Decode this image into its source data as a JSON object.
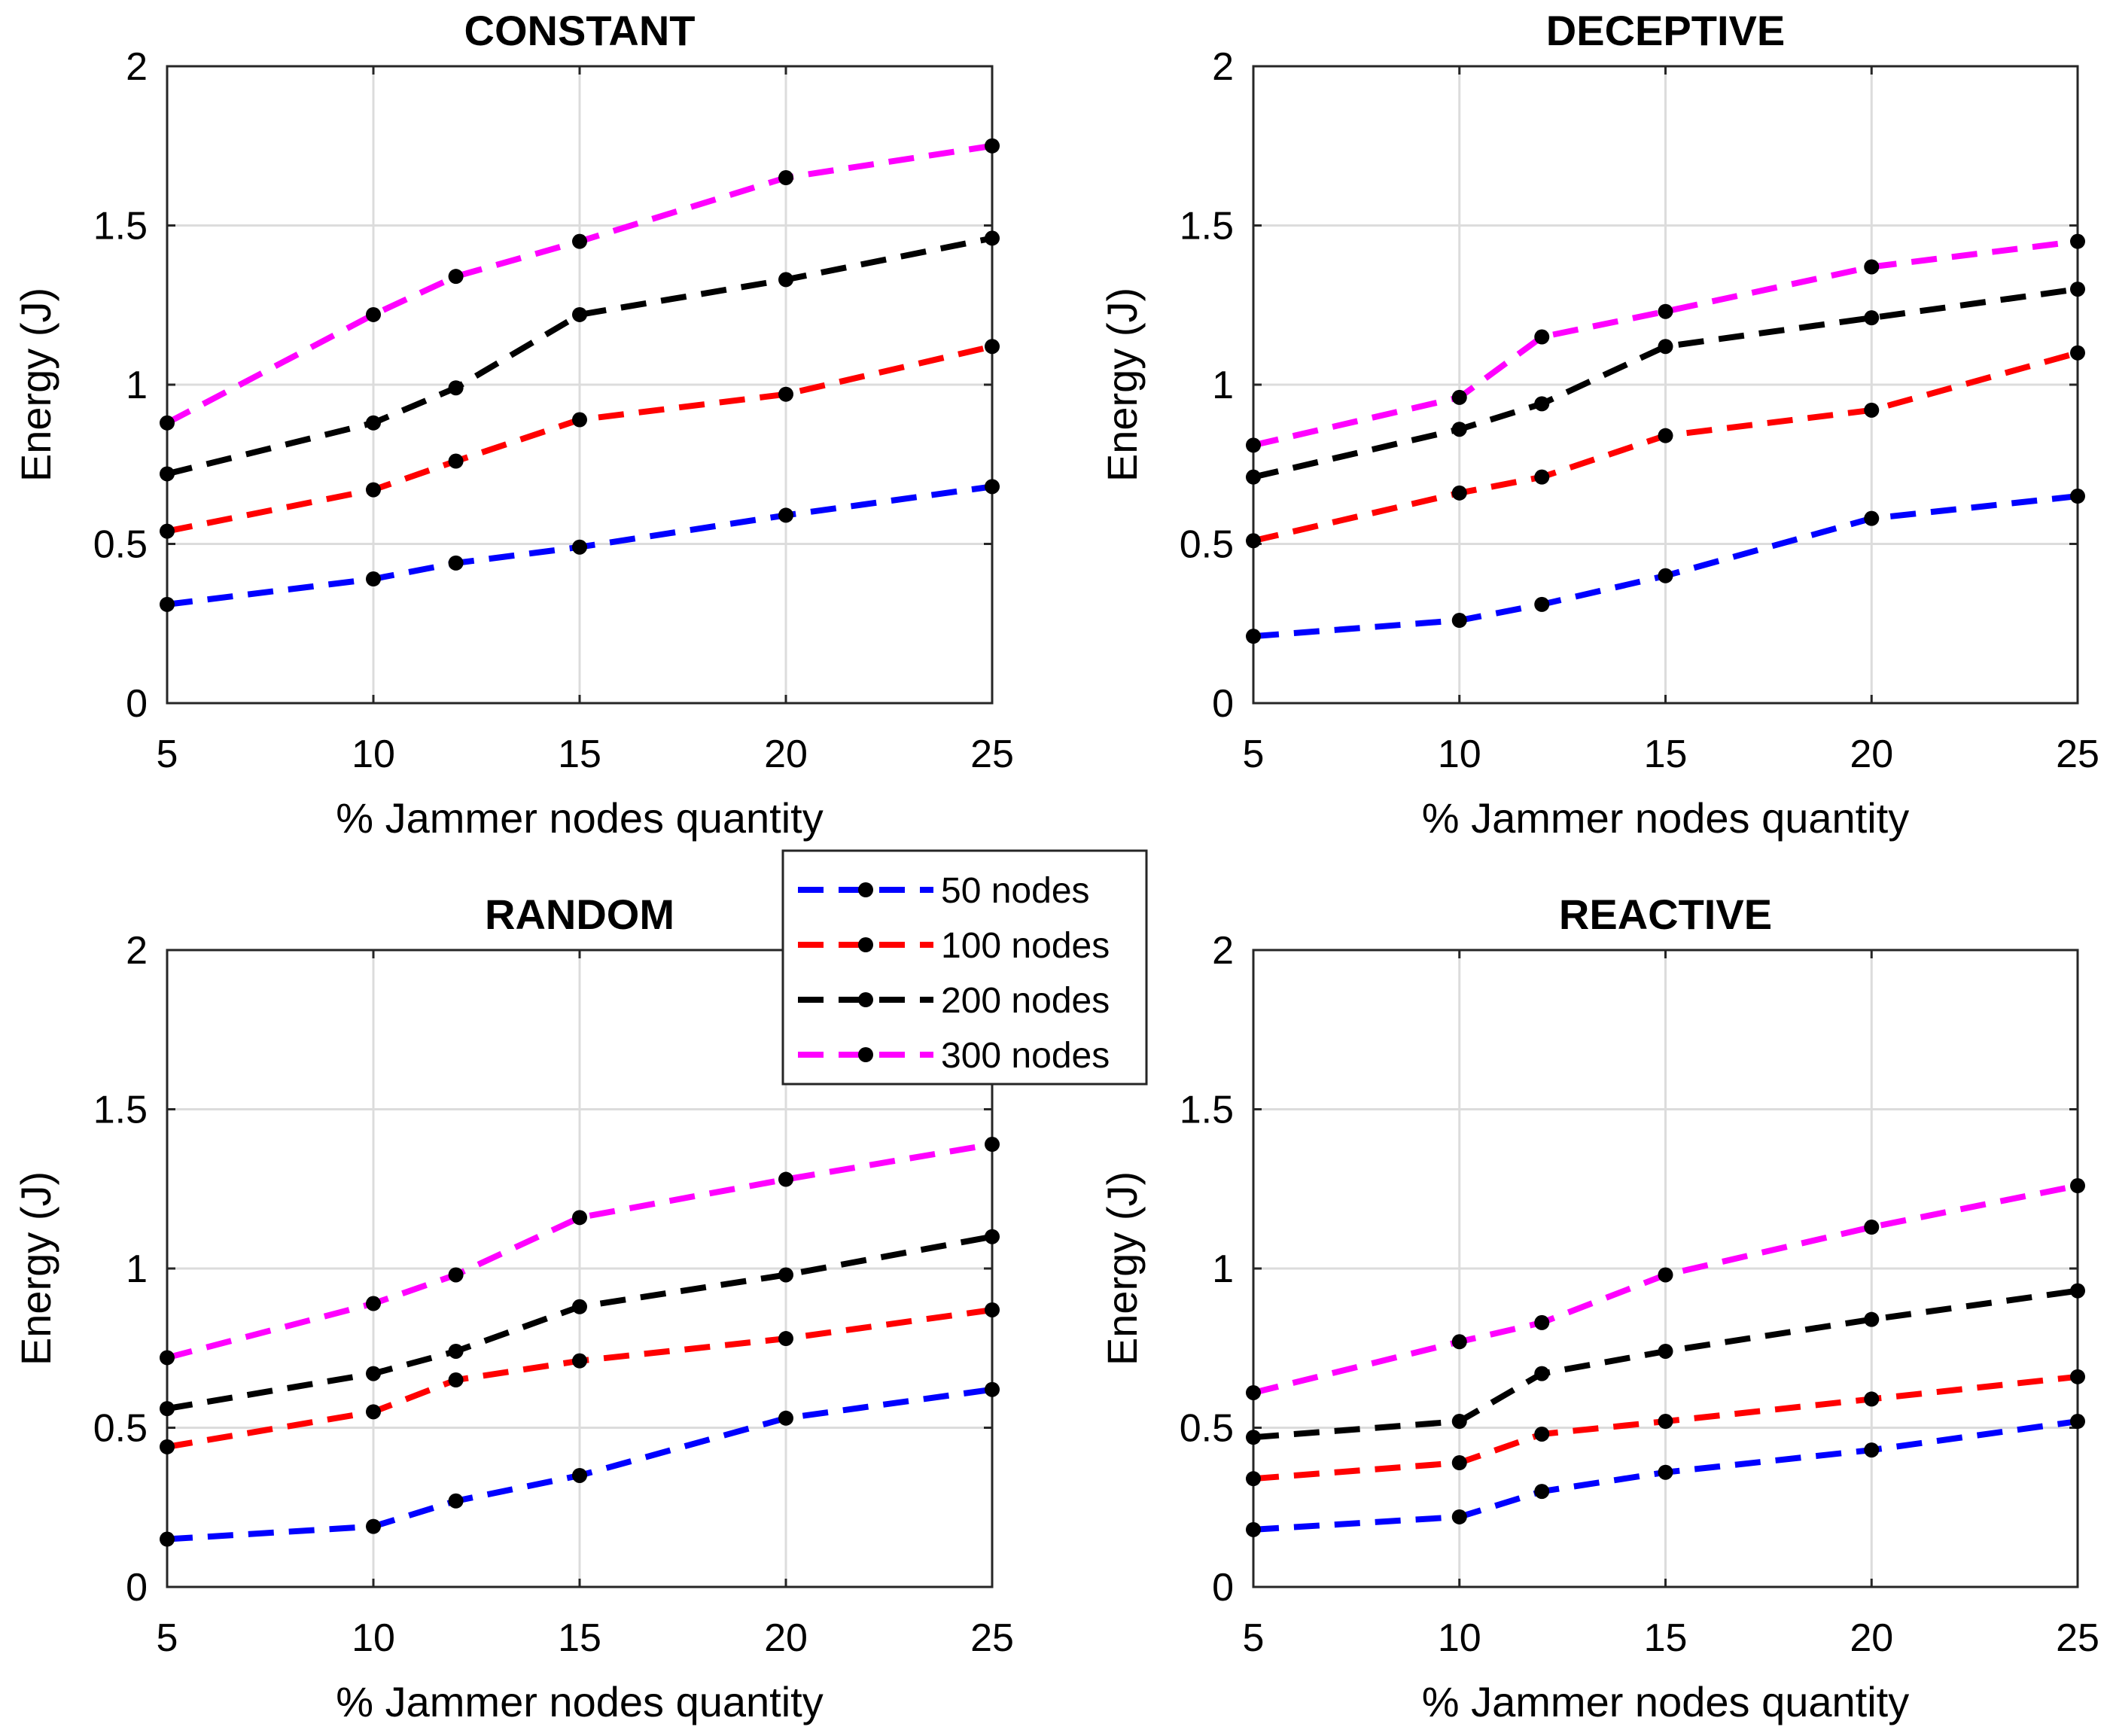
{
  "chart_data": [
    {
      "type": "line",
      "title": "CONSTANT",
      "xlabel": "% Jammer nodes quantity",
      "ylabel": "Energy (J)",
      "x": [
        5,
        10,
        12,
        15,
        20,
        25
      ],
      "xticks": [
        "5",
        "10",
        "15",
        "20",
        "25"
      ],
      "yticks": [
        "0",
        "0.5",
        "1",
        "1.5",
        "2"
      ],
      "xlim": [
        5,
        25
      ],
      "ylim": [
        0,
        2
      ],
      "grid": true,
      "series": [
        {
          "name": "50 nodes",
          "color": "#0000ff",
          "values": [
            0.31,
            0.39,
            0.44,
            0.49,
            0.59,
            0.68
          ]
        },
        {
          "name": "100 nodes",
          "color": "#ff0000",
          "values": [
            0.54,
            0.67,
            0.76,
            0.89,
            0.97,
            1.12
          ]
        },
        {
          "name": "200 nodes",
          "color": "#000000",
          "values": [
            0.72,
            0.88,
            0.99,
            1.22,
            1.33,
            1.46
          ]
        },
        {
          "name": "300 nodes",
          "color": "#ff00ff",
          "values": [
            0.88,
            1.22,
            1.34,
            1.45,
            1.65,
            1.75
          ]
        }
      ]
    },
    {
      "type": "line",
      "title": "DECEPTIVE",
      "xlabel": "% Jammer nodes quantity",
      "ylabel": "Energy (J)",
      "x": [
        5,
        10,
        12,
        15,
        20,
        25
      ],
      "xticks": [
        "5",
        "10",
        "15",
        "20",
        "25"
      ],
      "yticks": [
        "0",
        "0.5",
        "1",
        "1.5",
        "2"
      ],
      "xlim": [
        5,
        25
      ],
      "ylim": [
        0,
        2
      ],
      "grid": true,
      "series": [
        {
          "name": "50 nodes",
          "color": "#0000ff",
          "values": [
            0.21,
            0.26,
            0.31,
            0.4,
            0.58,
            0.65
          ]
        },
        {
          "name": "100 nodes",
          "color": "#ff0000",
          "values": [
            0.51,
            0.66,
            0.71,
            0.84,
            0.92,
            1.1
          ]
        },
        {
          "name": "200 nodes",
          "color": "#000000",
          "values": [
            0.71,
            0.86,
            0.94,
            1.12,
            1.21,
            1.3
          ]
        },
        {
          "name": "300 nodes",
          "color": "#ff00ff",
          "values": [
            0.81,
            0.96,
            1.15,
            1.23,
            1.37,
            1.45
          ]
        }
      ]
    },
    {
      "type": "line",
      "title": "RANDOM",
      "xlabel": "% Jammer nodes quantity",
      "ylabel": "Energy (J)",
      "x": [
        5,
        10,
        12,
        15,
        20,
        25
      ],
      "xticks": [
        "5",
        "10",
        "15",
        "20",
        "25"
      ],
      "yticks": [
        "0",
        "0.5",
        "1",
        "1.5",
        "2"
      ],
      "xlim": [
        5,
        25
      ],
      "ylim": [
        0,
        2
      ],
      "grid": true,
      "series": [
        {
          "name": "50 nodes",
          "color": "#0000ff",
          "values": [
            0.15,
            0.19,
            0.27,
            0.35,
            0.53,
            0.62
          ]
        },
        {
          "name": "100 nodes",
          "color": "#ff0000",
          "values": [
            0.44,
            0.55,
            0.65,
            0.71,
            0.78,
            0.87
          ]
        },
        {
          "name": "200 nodes",
          "color": "#000000",
          "values": [
            0.56,
            0.67,
            0.74,
            0.88,
            0.98,
            1.1
          ]
        },
        {
          "name": "300 nodes",
          "color": "#ff00ff",
          "values": [
            0.72,
            0.89,
            0.98,
            1.16,
            1.28,
            1.39
          ]
        }
      ]
    },
    {
      "type": "line",
      "title": "REACTIVE",
      "xlabel": "% Jammer nodes quantity",
      "ylabel": "Energy (J)",
      "x": [
        5,
        10,
        12,
        15,
        20,
        25
      ],
      "xticks": [
        "5",
        "10",
        "15",
        "20",
        "25"
      ],
      "yticks": [
        "0",
        "0.5",
        "1",
        "1.5",
        "2"
      ],
      "xlim": [
        5,
        25
      ],
      "ylim": [
        0,
        2
      ],
      "grid": true,
      "series": [
        {
          "name": "50 nodes",
          "color": "#0000ff",
          "values": [
            0.18,
            0.22,
            0.3,
            0.36,
            0.43,
            0.52
          ]
        },
        {
          "name": "100 nodes",
          "color": "#ff0000",
          "values": [
            0.34,
            0.39,
            0.48,
            0.52,
            0.59,
            0.66
          ]
        },
        {
          "name": "200 nodes",
          "color": "#000000",
          "values": [
            0.47,
            0.52,
            0.67,
            0.74,
            0.84,
            0.93
          ]
        },
        {
          "name": "300 nodes",
          "color": "#ff00ff",
          "values": [
            0.61,
            0.77,
            0.83,
            0.98,
            1.13,
            1.26
          ]
        }
      ]
    }
  ],
  "legend": {
    "position": "center",
    "entries": [
      {
        "label": "50 nodes",
        "color": "#0000ff"
      },
      {
        "label": "100 nodes",
        "color": "#ff0000"
      },
      {
        "label": "200 nodes",
        "color": "#000000"
      },
      {
        "label": "300 nodes",
        "color": "#ff00ff"
      }
    ]
  }
}
